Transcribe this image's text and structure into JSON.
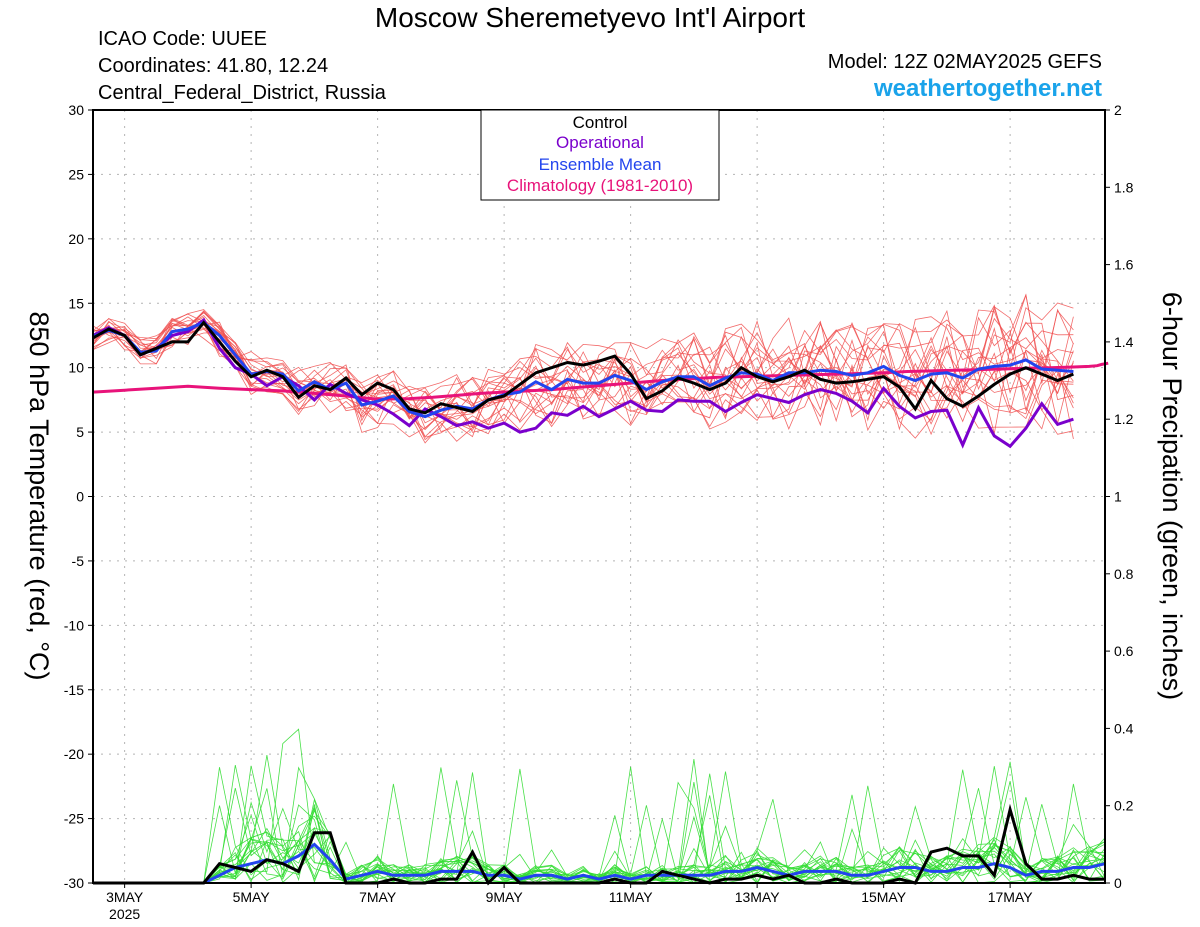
{
  "header": {
    "title": "Moscow Sheremetyevo Int'l Airport",
    "icao": "ICAO Code: UUEE",
    "coords": "Coordinates: 41.80, 12.24",
    "region": "Central_Federal_District, Russia",
    "model": "Model: 12Z 02MAY2025 GEFS",
    "site": "weathertogether.net"
  },
  "chart_data": {
    "type": "line",
    "ylabel_left": "850 hPa Temperature (red, °C)",
    "ylabel_right": "6-hour Precipation (green, inches)",
    "xlim": [
      0,
      64
    ],
    "ylim_left": [
      -30,
      30
    ],
    "ylim_right": [
      0,
      2
    ],
    "yticks_left": [
      30,
      25,
      20,
      15,
      10,
      5,
      0,
      -5,
      -10,
      -15,
      -20,
      -25,
      -30
    ],
    "yticks_right": [
      "2",
      "1.8",
      "1.6",
      "1.4",
      "1.2",
      "1",
      "0.8",
      "0.6",
      "0.4",
      "0.2",
      "0"
    ],
    "xticks": [
      {
        "x": 2,
        "label": "3MAY",
        "sub": "2025"
      },
      {
        "x": 10,
        "label": "5MAY"
      },
      {
        "x": 18,
        "label": "7MAY"
      },
      {
        "x": 26,
        "label": "9MAY"
      },
      {
        "x": 34,
        "label": "11MAY"
      },
      {
        "x": 42,
        "label": "13MAY"
      },
      {
        "x": 50,
        "label": "15MAY"
      },
      {
        "x": 58,
        "label": "17MAY"
      }
    ],
    "grid": true,
    "legend": {
      "position": "top-center",
      "items": [
        {
          "label": "Control",
          "color": "#000000"
        },
        {
          "label": "Operational",
          "color": "#7a00cc"
        },
        {
          "label": "Ensemble Mean",
          "color": "#2244ee"
        },
        {
          "label": "Climatology (1981-2010)",
          "color": "#e8137a"
        }
      ]
    },
    "colors": {
      "members_temp": "#f05050",
      "members_precip": "#33dd33",
      "control": "#000000",
      "operational": "#7a00cc",
      "mean": "#2244ee",
      "climatology": "#e8137a"
    },
    "temperature": {
      "control": [
        12.3,
        13,
        12.5,
        11,
        11.5,
        12,
        12,
        13.5,
        12,
        10.5,
        9.3,
        9.8,
        9.3,
        7.7,
        8.6,
        8.3,
        9.2,
        7.9,
        8.8,
        8.3,
        6.8,
        6.5,
        7.2,
        6.9,
        6.6,
        7.5,
        7.8,
        8.7,
        9.6,
        10,
        10.4,
        10.2,
        10.5,
        10.9,
        9.5,
        7.6,
        8.2,
        9.2,
        8.8,
        8.3,
        8.8,
        10,
        9.3,
        8.9,
        9.3,
        9.8,
        9.1,
        8.8,
        8.9,
        9.1,
        9.3,
        8.5,
        6.8,
        9,
        7.6,
        7,
        7.8,
        8.7,
        9.5,
        10,
        9.5,
        9,
        9.5
      ],
      "operational": [
        12.5,
        13.1,
        12.5,
        11,
        11.5,
        12.5,
        12.8,
        13.7,
        11.5,
        10,
        9.5,
        8.6,
        9.3,
        8.6,
        7.5,
        8.7,
        8,
        7.5,
        7.1,
        6.4,
        5.5,
        6.8,
        6.2,
        5.5,
        5.8,
        5.3,
        5.7,
        5,
        5.3,
        6.5,
        6.3,
        7,
        6.2,
        6.8,
        7.4,
        6.7,
        6.6,
        7.5,
        7.4,
        7.4,
        6.6,
        7.3,
        7.9,
        7.6,
        7.3,
        7.9,
        8.3,
        8,
        7.4,
        6.5,
        8.4,
        7,
        6.1,
        6.6,
        6.7,
        4,
        6.9,
        4.7,
        3.9,
        5.3,
        7.2,
        5.6,
        6
      ],
      "mean": [
        12.4,
        12.9,
        12.5,
        11.2,
        11.3,
        12.8,
        13,
        13.5,
        12.5,
        11,
        9.5,
        9.7,
        9.5,
        8.2,
        8.9,
        8.3,
        8.8,
        7.1,
        7.4,
        7.8,
        6.6,
        6.2,
        6.7,
        7,
        6.8,
        7.5,
        7.9,
        8.1,
        8.9,
        8.3,
        9.1,
        8.8,
        8.8,
        9.4,
        9,
        8.3,
        8.9,
        9.3,
        9.3,
        8.6,
        9.2,
        9.6,
        9.5,
        9,
        9.6,
        9.6,
        9.8,
        9.7,
        9.4,
        9.6,
        10.1,
        9.4,
        9,
        9.5,
        9.6,
        9.2,
        9.9,
        10.1,
        10.2,
        10.6,
        9.9,
        9.8,
        9.7
      ],
      "climatology": [
        8.1,
        8.25,
        8.4,
        8.55,
        8.4,
        8.3,
        8.2,
        8.0,
        7.8,
        7.55,
        7.6,
        7.7,
        7.85,
        8.0,
        8.1,
        8.2,
        8.3,
        8.45,
        8.6,
        8.75,
        8.9,
        9.05,
        9.15,
        9.25,
        9.3,
        9.35,
        9.4,
        9.45,
        9.5,
        9.55,
        9.6,
        9.7,
        9.75,
        9.8,
        9.85,
        9.9,
        9.95,
        10.0,
        10.05,
        10.1,
        10.15,
        10.25,
        10.3,
        10.35
      ],
      "climatology_x": [
        0,
        2,
        4,
        6,
        8,
        10,
        12,
        14,
        16,
        18,
        20,
        21.5,
        23,
        24.5,
        26,
        27.5,
        29,
        30.5,
        32,
        33.5,
        35,
        36.5,
        38,
        39.5,
        41,
        42.5,
        44,
        45.5,
        47,
        48.5,
        50,
        51.5,
        53,
        54.5,
        56,
        57.5,
        59,
        60.5,
        62,
        63,
        63.5,
        63.8,
        64,
        64.2
      ]
    },
    "precipitation": {
      "control": [
        0,
        0,
        0,
        0,
        0,
        0,
        0,
        0,
        0.05,
        0.04,
        0.03,
        0.06,
        0.05,
        0.03,
        0.13,
        0.13,
        0,
        0,
        0,
        0.01,
        0,
        0,
        0.01,
        0.01,
        0.08,
        0,
        0.04,
        0,
        0,
        0,
        0,
        0,
        0,
        0.01,
        0,
        0,
        0.03,
        0.02,
        0.01,
        0,
        0.01,
        0.01,
        0.02,
        0.01,
        0.02,
        0,
        0,
        0.01,
        0,
        0,
        0,
        0.01,
        0,
        0.08,
        0.09,
        0.07,
        0.07,
        0.02,
        0.19,
        0.05,
        0.01,
        0.01,
        0.02,
        0.01,
        0.01
      ],
      "mean": [
        0,
        0,
        0,
        0,
        0,
        0,
        0,
        0,
        0.02,
        0.04,
        0.05,
        0.06,
        0.05,
        0.07,
        0.1,
        0.06,
        0.01,
        0.02,
        0.03,
        0.02,
        0.02,
        0.02,
        0.03,
        0.03,
        0.03,
        0.02,
        0.02,
        0.01,
        0.02,
        0.02,
        0.01,
        0.02,
        0.01,
        0.02,
        0.01,
        0.02,
        0.02,
        0.02,
        0.02,
        0.02,
        0.03,
        0.03,
        0.04,
        0.03,
        0.02,
        0.03,
        0.03,
        0.03,
        0.02,
        0.02,
        0.03,
        0.04,
        0.04,
        0.03,
        0.03,
        0.04,
        0.04,
        0.05,
        0.04,
        0.02,
        0.03,
        0.03,
        0.04,
        0.04,
        0.05
      ]
    }
  }
}
